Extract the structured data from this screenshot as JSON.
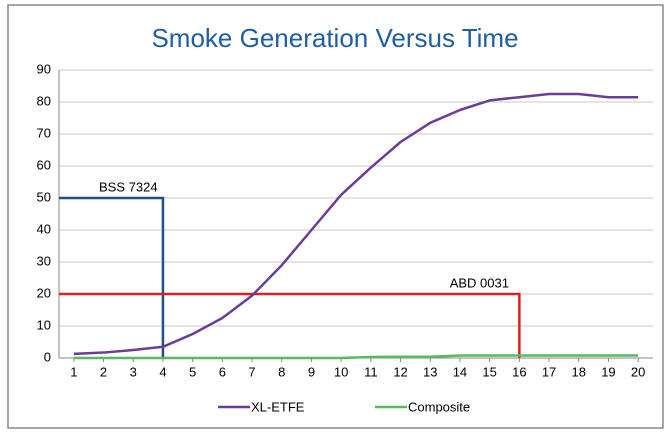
{
  "chart_data": {
    "type": "line",
    "title": "Smoke Generation Versus Time",
    "x": [
      1,
      2,
      3,
      4,
      5,
      6,
      7,
      8,
      9,
      10,
      11,
      12,
      13,
      14,
      15,
      16,
      17,
      18,
      19,
      20
    ],
    "xlim": [
      0.5,
      20.5
    ],
    "xticks": [
      1,
      2,
      3,
      4,
      5,
      6,
      7,
      8,
      9,
      10,
      11,
      12,
      13,
      14,
      15,
      16,
      17,
      18,
      19,
      20
    ],
    "ylim": [
      0,
      90
    ],
    "yticks": [
      0,
      10,
      20,
      30,
      40,
      50,
      60,
      70,
      80,
      90
    ],
    "grid": true,
    "series": [
      {
        "name": "XL-ETFE",
        "color": "#6a3d9a",
        "values": [
          1.3,
          1.7,
          2.5,
          3.5,
          7.5,
          12.5,
          19.5,
          29,
          40,
          51,
          59.5,
          67.5,
          73.5,
          77.5,
          80.5,
          81.5,
          82.5,
          82.5,
          81.5,
          81.5
        ]
      },
      {
        "name": "Composite",
        "color": "#5cb85c",
        "values": [
          0,
          0,
          0,
          0,
          0,
          0,
          0,
          0,
          0,
          0,
          0.3,
          0.4,
          0.4,
          0.8,
          0.8,
          0.8,
          0.8,
          0.8,
          0.8,
          0.8
        ]
      }
    ],
    "annotations": [
      {
        "label": "BSS 7324",
        "x": 4,
        "y": 50,
        "color": "#1f4e8c"
      },
      {
        "label": "ABD 0031",
        "x": 16,
        "y": 20,
        "color": "#e02020"
      }
    ],
    "legend": "bottom"
  }
}
